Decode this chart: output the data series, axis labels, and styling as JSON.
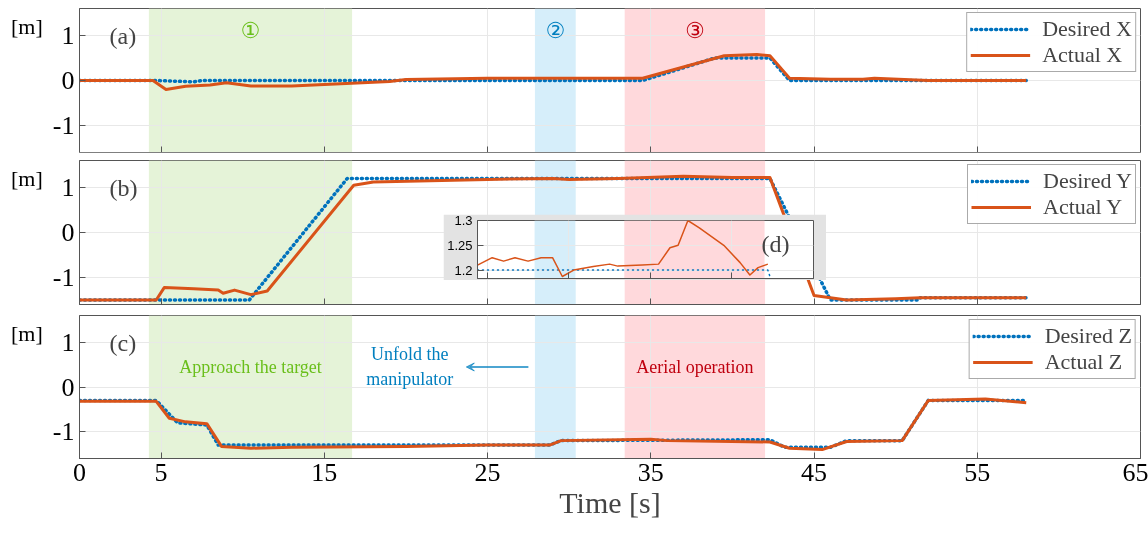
{
  "chart_data": [
    {
      "type": "line",
      "ylabel": "[m]",
      "xlim": [
        0,
        65
      ],
      "xticks": [
        0,
        5,
        15,
        25,
        35,
        45,
        55,
        65
      ],
      "ylim": [
        -1.6,
        1.6
      ],
      "yticks": [
        -1,
        0,
        1
      ],
      "grid": true,
      "legend": "top right",
      "tick_labels": "y",
      "annotations": [
        "(a)"
      ],
      "bands": [
        {
          "axis": "x",
          "from": 4.25,
          "to": 16.7,
          "label": "①",
          "color": "#e5f3d8"
        },
        {
          "axis": "x",
          "from": 27.9,
          "to": 30.4,
          "label": "②",
          "color": "#d6eefa"
        },
        {
          "axis": "x",
          "from": 33.4,
          "to": 42.0,
          "label": "③",
          "color": "#ffd9dc"
        }
      ],
      "series": [
        {
          "name": "Desired X",
          "color": "#0072bd",
          "line_style": "dotted",
          "x": [
            0,
            4.7,
            7,
            7.5,
            34.5,
            38.9,
            42.3,
            43.5,
            58
          ],
          "values": [
            0,
            0,
            -0.03,
            0,
            0,
            0.5,
            0.5,
            0,
            0
          ]
        },
        {
          "name": "Actual X",
          "color": "#d95319",
          "line_style": "solid",
          "x": [
            0,
            4.5,
            5.3,
            6.5,
            8,
            9,
            10.5,
            13,
            16,
            19,
            20,
            25,
            30,
            34.5,
            37,
            39.5,
            41.5,
            42.3,
            43.5,
            46,
            48,
            48.7,
            52,
            58
          ],
          "values": [
            0,
            0,
            -0.2,
            -0.13,
            -0.1,
            -0.05,
            -0.12,
            -0.12,
            -0.07,
            -0.02,
            0.02,
            0.05,
            0.05,
            0.05,
            0.3,
            0.55,
            0.58,
            0.55,
            0.05,
            0.03,
            0.03,
            0.05,
            0,
            0
          ]
        }
      ]
    },
    {
      "type": "line",
      "ylabel": "[m]",
      "xlim": [
        0,
        65
      ],
      "xticks": [
        0,
        5,
        15,
        25,
        35,
        45,
        55,
        65
      ],
      "ylim": [
        -1.6,
        1.6
      ],
      "yticks": [
        -1,
        0,
        1
      ],
      "grid": true,
      "legend": "top right",
      "tick_labels": "y",
      "annotations": [
        "(b)"
      ],
      "bands": [
        {
          "axis": "x",
          "from": 4.25,
          "to": 16.7,
          "color": "#e5f3d8"
        },
        {
          "axis": "x",
          "from": 27.9,
          "to": 30.4,
          "color": "#d6eefa"
        },
        {
          "axis": "x",
          "from": 33.4,
          "to": 42.0,
          "color": "#ffd9dc"
        }
      ],
      "series": [
        {
          "name": "Desired Y",
          "color": "#0072bd",
          "line_style": "dotted",
          "x": [
            0,
            10.4,
            16.4,
            42.3,
            46,
            51.4,
            51.5,
            58
          ],
          "values": [
            -1.5,
            -1.5,
            1.2,
            1.2,
            -1.5,
            -1.5,
            -1.45,
            -1.45
          ]
        },
        {
          "name": "Actual Y",
          "color": "#d95319",
          "line_style": "solid",
          "x": [
            0,
            4.7,
            5.2,
            7,
            8.5,
            8.8,
            9.5,
            10.5,
            11.5,
            16.8,
            18,
            25,
            29,
            30,
            33,
            37,
            40,
            42.3,
            45,
            47,
            50,
            51.5,
            58
          ],
          "values": [
            -1.5,
            -1.5,
            -1.22,
            -1.25,
            -1.28,
            -1.35,
            -1.28,
            -1.38,
            -1.3,
            1.05,
            1.12,
            1.18,
            1.2,
            1.18,
            1.2,
            1.25,
            1.22,
            1.22,
            -1.4,
            -1.5,
            -1.47,
            -1.45,
            -1.45
          ]
        }
      ]
    },
    {
      "type": "line",
      "ylabel": "[m]",
      "xlabel": "Time [s]",
      "xlim": [
        0,
        65
      ],
      "xticks": [
        0,
        5,
        15,
        25,
        35,
        45,
        55,
        65
      ],
      "ylim": [
        -1.6,
        1.6
      ],
      "yticks": [
        -1,
        0,
        1
      ],
      "grid": true,
      "legend": "top right",
      "annotations": [
        "(c)"
      ],
      "bands": [
        {
          "axis": "x",
          "from": 4.25,
          "to": 16.7,
          "label": "Approach the target",
          "color": "#e5f3d8"
        },
        {
          "axis": "x",
          "from": 27.9,
          "to": 30.4,
          "label": "Unfold the\nmanipulator",
          "color": "#d6eefa"
        },
        {
          "axis": "x",
          "from": 33.4,
          "to": 42.0,
          "label": "Aerial operation",
          "color": "#ffd9dc"
        }
      ],
      "series": [
        {
          "name": "Desired Z",
          "color": "#0072bd",
          "line_style": "dotted",
          "x": [
            0,
            4.7,
            6,
            7.8,
            8.5,
            28.8,
            29.5,
            42.3,
            43.2,
            46,
            47,
            50.4,
            52,
            58
          ],
          "values": [
            -0.3,
            -0.3,
            -0.8,
            -0.85,
            -1.3,
            -1.3,
            -1.2,
            -1.18,
            -1.35,
            -1.35,
            -1.2,
            -1.2,
            -0.3,
            -0.3
          ]
        },
        {
          "name": "Actual Z",
          "color": "#d95319",
          "line_style": "solid",
          "x": [
            0,
            4.7,
            5.5,
            6.5,
            7.8,
            8.7,
            10.5,
            13,
            20,
            25,
            28.8,
            29.5,
            35,
            36,
            42.3,
            43.5,
            45.5,
            47,
            50.4,
            52,
            55.5,
            58
          ],
          "values": [
            -0.32,
            -0.32,
            -0.7,
            -0.78,
            -0.82,
            -1.33,
            -1.37,
            -1.35,
            -1.33,
            -1.3,
            -1.3,
            -1.2,
            -1.17,
            -1.2,
            -1.23,
            -1.37,
            -1.4,
            -1.22,
            -1.2,
            -0.3,
            -0.27,
            -0.35
          ]
        }
      ]
    },
    {
      "type": "line",
      "xlim": [
        24.4,
        45
      ],
      "xticks": [
        25,
        30,
        35,
        40,
        45
      ],
      "ylim": [
        1.183,
        1.3
      ],
      "yticks": [
        1.2,
        1.25,
        1.3
      ],
      "grid": true,
      "tick_labels": "y",
      "annotations": [
        "(d)"
      ],
      "bands": [
        {
          "axis": "x",
          "from": 27.9,
          "to": 30.4,
          "color": "#d6eefa"
        },
        {
          "axis": "x",
          "from": 33.4,
          "to": 42.0,
          "color": "#ffd9dc"
        }
      ],
      "series": [
        {
          "color": "#0072bd",
          "line_style": "dotted",
          "x": [
            24.4,
            42.2,
            42.35
          ],
          "values": [
            1.2,
            1.2,
            1.185
          ]
        },
        {
          "color": "#d95319",
          "line_style": "solid",
          "x": [
            24.4,
            25.3,
            26,
            26.7,
            27.5,
            28.3,
            29,
            29.6,
            30.3,
            31.5,
            32.5,
            33,
            34.5,
            35.5,
            36.2,
            36.7,
            37.3,
            38,
            39.5,
            40.5,
            41.1,
            41.6,
            42.2
          ],
          "values": [
            1.21,
            1.225,
            1.218,
            1.225,
            1.218,
            1.225,
            1.225,
            1.187,
            1.2,
            1.207,
            1.212,
            1.208,
            1.21,
            1.212,
            1.245,
            1.25,
            1.3,
            1.285,
            1.25,
            1.215,
            1.19,
            1.205,
            1.212
          ]
        }
      ]
    }
  ]
}
